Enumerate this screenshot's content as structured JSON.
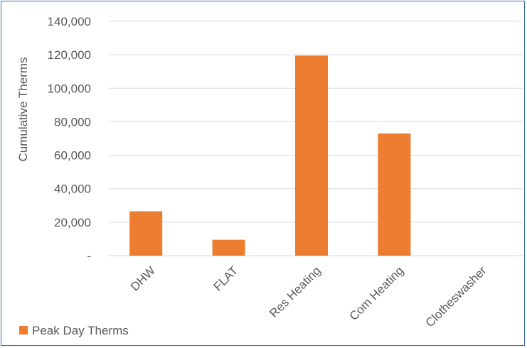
{
  "chart_data": {
    "type": "bar",
    "title": "",
    "xlabel": "",
    "ylabel": "Cumulative Therms",
    "categories": [
      "DHW",
      "FLAT",
      "Res Heating",
      "Com Heating",
      "Clotheswasher"
    ],
    "series": [
      {
        "name": "Peak Day Therms",
        "color": "#ED7D31",
        "values": [
          26500,
          9500,
          119500,
          73000,
          0
        ]
      }
    ],
    "ylim": [
      0,
      140000
    ],
    "yticks": [
      0,
      20000,
      40000,
      60000,
      80000,
      100000,
      120000,
      140000
    ],
    "ytick_labels": [
      "-",
      "20,000",
      "40,000",
      "60,000",
      "80,000",
      "100,000",
      "120,000",
      "140,000"
    ],
    "grid": true,
    "gridline_color": "#D9D9D9",
    "legend_position": "bottom-left"
  }
}
